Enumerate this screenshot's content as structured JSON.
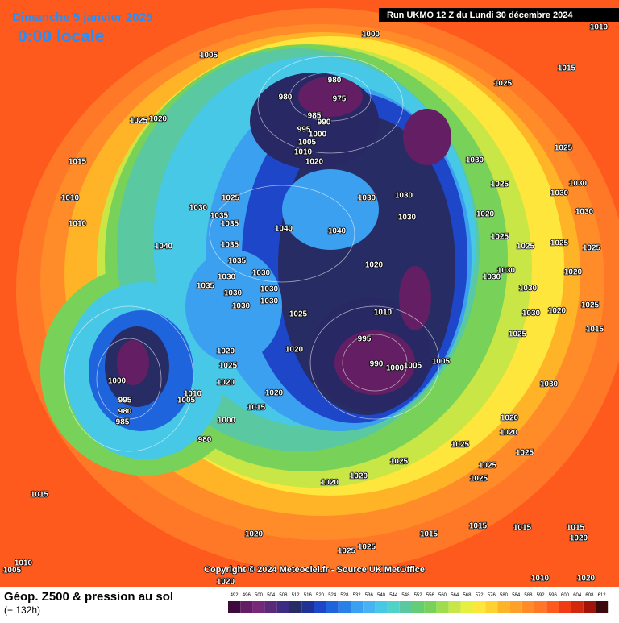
{
  "header": {
    "date": "Dimanche 5 janvier 2025",
    "time": "0:00 locale",
    "run": "Run UKMO 12 Z du Lundi 30 décembre 2024"
  },
  "copyright": "Copyright © 2024 Meteociel.fr - Source UK MetOffice",
  "footer": {
    "title": "Géop. Z500 & pression au sol",
    "lead": "(+ 132h)"
  },
  "scale": {
    "labels": [
      492,
      496,
      500,
      504,
      508,
      512,
      516,
      520,
      524,
      528,
      532,
      536,
      540,
      544,
      548,
      552,
      556,
      560,
      564,
      568,
      572,
      576,
      580,
      584,
      588,
      592,
      596,
      600,
      604,
      608,
      612
    ],
    "colors": [
      "#3c0a3c",
      "#641e64",
      "#782878",
      "#5a2a7a",
      "#3c2c82",
      "#282c64",
      "#1e3296",
      "#1e46c8",
      "#1e64dc",
      "#2882e6",
      "#3ca0f0",
      "#46b4f0",
      "#46c8e6",
      "#50d2c8",
      "#5ac8a0",
      "#64cd78",
      "#78d25a",
      "#a0dc50",
      "#c8e646",
      "#e6f040",
      "#ffe63c",
      "#ffd232",
      "#ffb428",
      "#ffa028",
      "#ff8c28",
      "#ff7828",
      "#ff5a1e",
      "#f03c14",
      "#d2280f",
      "#a0140a",
      "#3c0a0a"
    ]
  },
  "isobar_labels": [
    1000,
    1010,
    1005,
    980,
    975,
    980,
    1025,
    1015,
    1025,
    1020,
    985,
    990,
    995,
    1000,
    1005,
    1010,
    1020,
    1030,
    1015,
    1025,
    1030,
    1025,
    1030,
    1010,
    1025,
    1030,
    1030,
    1030,
    1035,
    1020,
    1030,
    1010,
    1035,
    1040,
    1040,
    1030,
    1025,
    1040,
    1035,
    1035,
    1025,
    1025,
    1025,
    1020,
    1030,
    1020,
    1030,
    1030,
    1030,
    1030,
    1035,
    1030,
    1030,
    1030,
    1030,
    1025,
    1010,
    1030,
    1020,
    1025,
    1015,
    1025,
    995,
    1020,
    1020,
    990,
    1000,
    1005,
    1005,
    1025,
    1000,
    1020,
    1030,
    1010,
    1020,
    1005,
    995,
    1015,
    980,
    985,
    1000,
    1020,
    980,
    1020,
    1025,
    1025,
    1025,
    1025,
    1020,
    1025,
    1020,
    1015,
    1015,
    1015,
    1015,
    1020,
    1015,
    1020,
    1025,
    1025,
    1010,
    1005,
    1020,
    1010,
    1020
  ]
}
